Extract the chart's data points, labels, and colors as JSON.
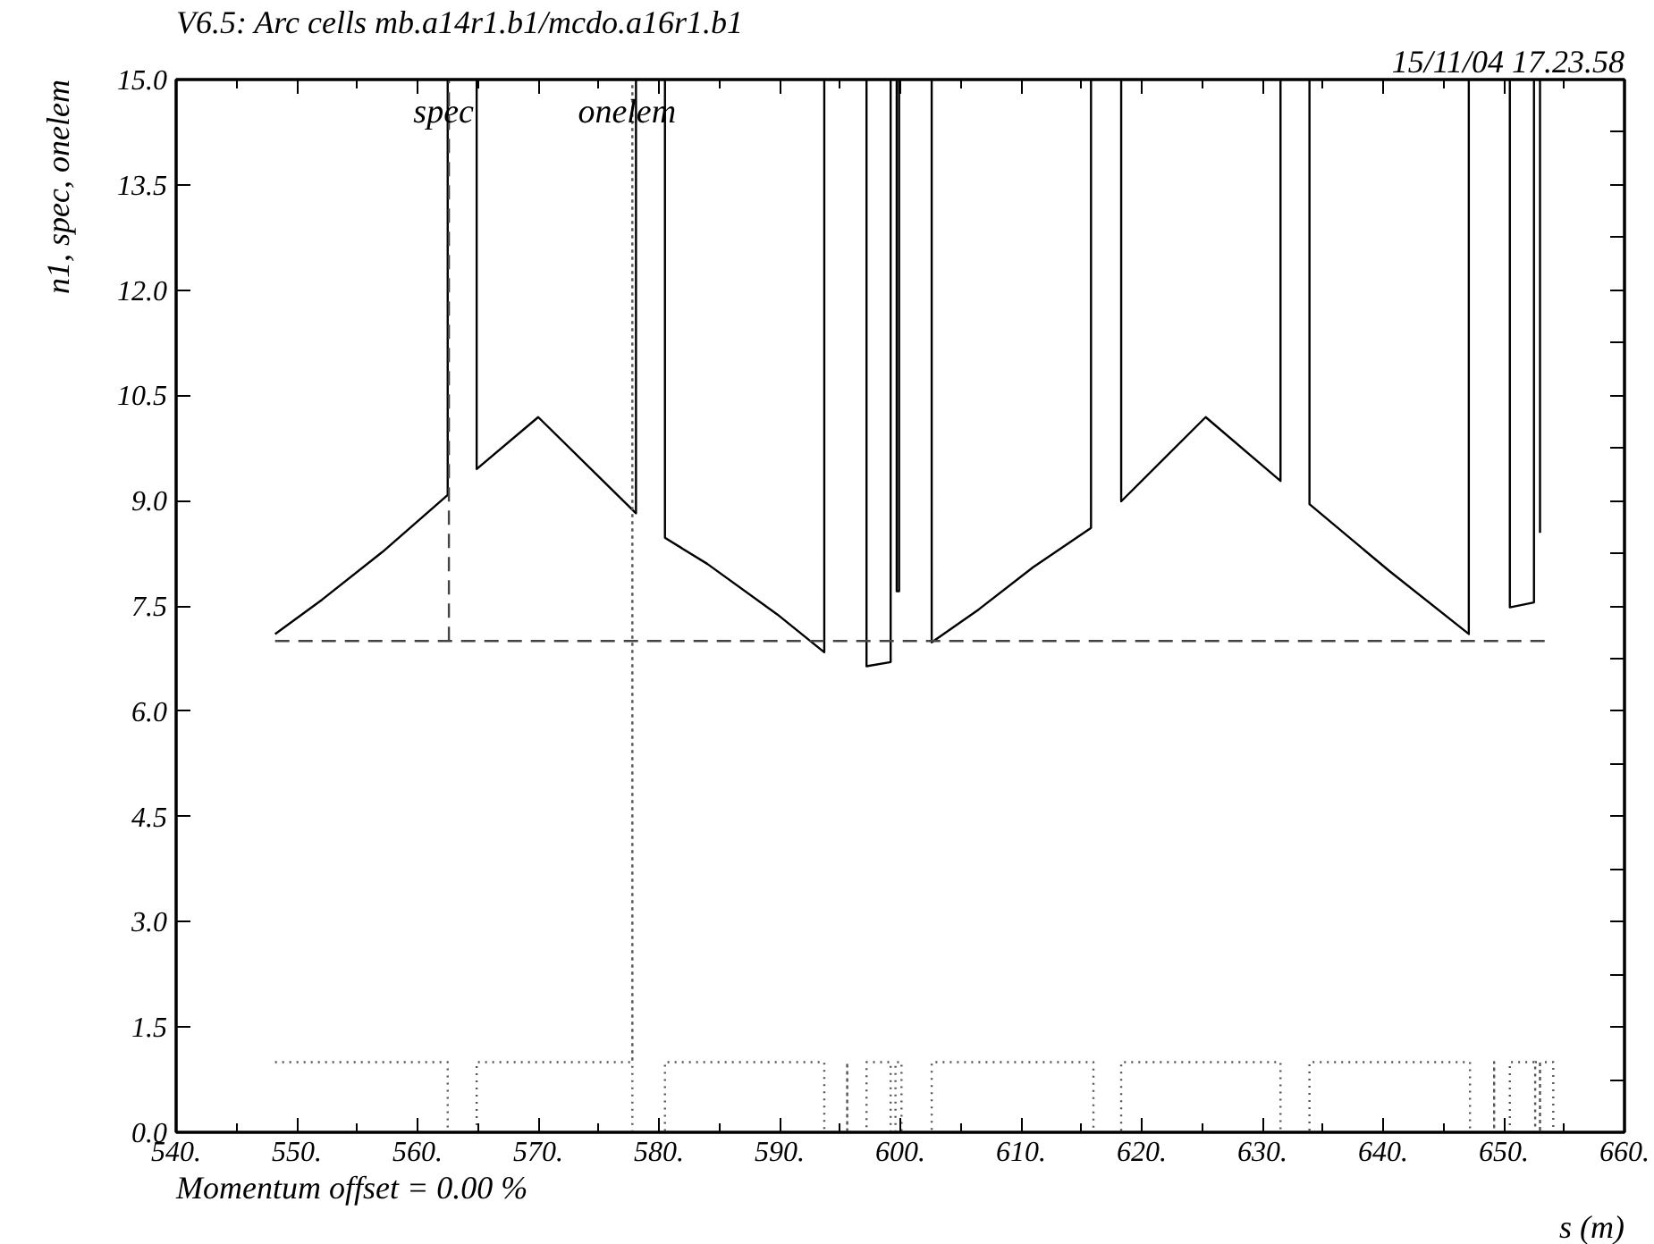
{
  "chart_data": {
    "type": "line",
    "title": "V6.5: Arc cells mb.a14r1.b1/mcdo.a16r1.b1",
    "subtitle": "15/11/04 17.23.58",
    "xlabel": "s (m)",
    "ylabel": "n1, spec, onelem",
    "annotations": [
      "Momentum offset =    0.00 %"
    ],
    "xlim": [
      540,
      660
    ],
    "ylim": [
      0,
      15
    ],
    "xticks": [
      {
        "value": 540,
        "label": "540."
      },
      {
        "value": 550,
        "label": "550."
      },
      {
        "value": 560,
        "label": "560."
      },
      {
        "value": 570,
        "label": "570."
      },
      {
        "value": 580,
        "label": "580."
      },
      {
        "value": 590,
        "label": "590."
      },
      {
        "value": 600,
        "label": "600."
      },
      {
        "value": 610,
        "label": "610."
      },
      {
        "value": 620,
        "label": "620."
      },
      {
        "value": 630,
        "label": "630."
      },
      {
        "value": 640,
        "label": "640."
      },
      {
        "value": 650,
        "label": "650."
      },
      {
        "value": 660,
        "label": "660."
      }
    ],
    "yticks": [
      {
        "value": 0,
        "label": "0.0"
      },
      {
        "value": 1.5,
        "label": "1.5"
      },
      {
        "value": 3,
        "label": "3.0"
      },
      {
        "value": 4.5,
        "label": "4.5"
      },
      {
        "value": 6,
        "label": "6.0"
      },
      {
        "value": 7.5,
        "label": "7.5"
      },
      {
        "value": 9,
        "label": "9.0"
      },
      {
        "value": 10.5,
        "label": "10.5"
      },
      {
        "value": 12,
        "label": "12.0"
      },
      {
        "value": 13.5,
        "label": "13.5"
      },
      {
        "value": 15,
        "label": "15.0"
      }
    ],
    "grid": false,
    "marker": "none",
    "series": [
      {
        "color": "#000000",
        "line_style": "solid",
        "x": [
          548.2,
          552.1,
          557.1,
          562.5,
          562.5,
          null,
          564.9,
          564.9,
          570.0,
          578.1,
          578.1,
          null,
          580.5,
          580.5,
          584.0,
          589.8,
          593.7,
          593.7,
          null,
          597.2,
          597.2,
          599.2,
          599.2,
          null,
          599.7,
          599.7,
          599.9,
          599.9,
          null,
          602.6,
          602.6,
          606.5,
          611.0,
          615.8,
          615.8,
          null,
          618.3,
          618.3,
          625.3,
          631.5,
          631.5,
          null,
          633.9,
          633.9,
          640.5,
          647.1,
          647.1,
          null,
          650.5,
          650.5,
          652.5,
          652.5,
          null,
          653.0,
          653.0
        ],
        "values": [
          7.1,
          7.59,
          8.27,
          9.08,
          15,
          null,
          15,
          9.45,
          10.19,
          8.82,
          15,
          null,
          15,
          8.47,
          8.1,
          7.38,
          6.84,
          15,
          null,
          15,
          6.64,
          6.7,
          15,
          null,
          15,
          7.71,
          7.71,
          15,
          null,
          15,
          6.98,
          7.45,
          8.05,
          8.61,
          15,
          null,
          15,
          8.99,
          10.19,
          9.28,
          15,
          null,
          15,
          8.95,
          8.0,
          7.1,
          15,
          null,
          15,
          7.48,
          7.55,
          15,
          null,
          15,
          8.54
        ]
      },
      {
        "name": "spec",
        "color": "#444444",
        "line_style": "dashed",
        "x": [
          548.2,
          654.1,
          null,
          562.6,
          562.6
        ],
        "values": [
          7.0,
          7.0,
          null,
          7.0,
          15
        ]
      },
      {
        "name": "onelem",
        "color": "#555555",
        "line_style": "dotted",
        "x": [
          548.2,
          562.5,
          562.5,
          564.9,
          564.9,
          577.8,
          577.8,
          577.8,
          580.5,
          580.5,
          593.7,
          593.7,
          595.6,
          595.6,
          595.6,
          597.2,
          597.2,
          599.2,
          599.2,
          599.6,
          599.6,
          600.1,
          600.1,
          602.6,
          602.6,
          616.0,
          616.0,
          618.3,
          618.3,
          631.5,
          631.5,
          633.9,
          633.9,
          647.2,
          647.2,
          649.2,
          649.2,
          649.2,
          650.5,
          650.5,
          652.6,
          652.6,
          652.6,
          653.0,
          653.0,
          653.0,
          654.1,
          654.1
        ],
        "values": [
          1,
          1,
          0,
          0,
          1,
          1,
          15,
          0,
          0,
          1,
          1,
          0,
          0,
          1,
          0,
          0,
          1,
          1,
          0,
          0,
          1,
          1,
          0,
          0,
          1,
          1,
          0,
          0,
          1,
          1,
          0,
          0,
          1,
          1,
          0,
          0,
          1,
          0,
          0,
          1,
          1,
          0,
          1,
          1,
          0,
          1,
          1,
          0
        ]
      }
    ]
  }
}
